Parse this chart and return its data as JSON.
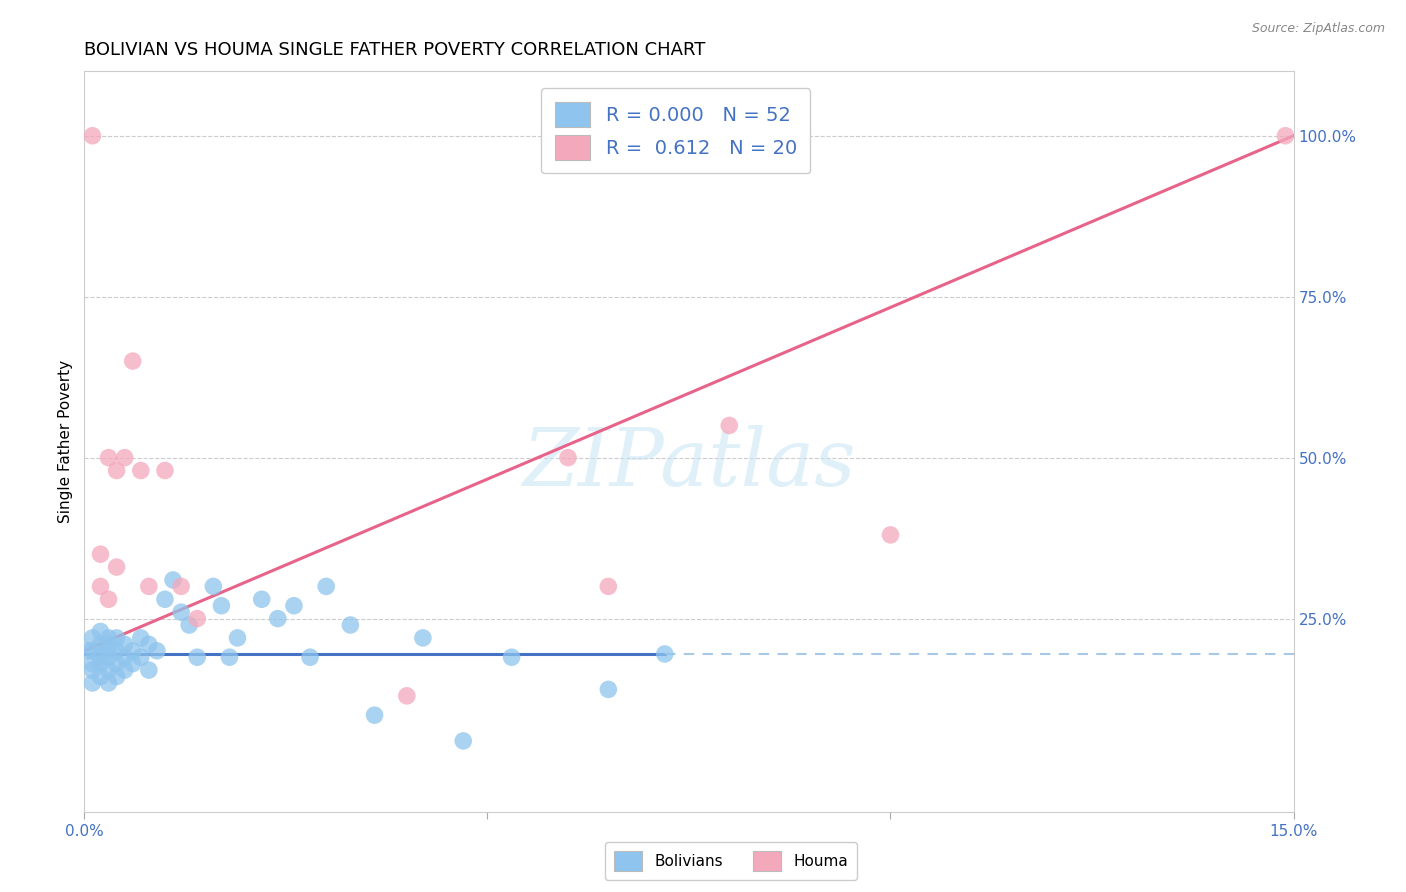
{
  "title": "BOLIVIAN VS HOUMA SINGLE FATHER POVERTY CORRELATION CHART",
  "source_text": "Source: ZipAtlas.com",
  "ylabel": "Single Father Poverty",
  "xlim": [
    0.0,
    0.15
  ],
  "ylim": [
    -0.05,
    1.1
  ],
  "ytick_labels_right": [
    "25.0%",
    "50.0%",
    "75.0%",
    "100.0%"
  ],
  "ytick_vals_right": [
    0.25,
    0.5,
    0.75,
    1.0
  ],
  "legend_r_bolivians": "0.000",
  "legend_n_bolivians": "52",
  "legend_r_houma": "0.612",
  "legend_n_houma": "20",
  "color_bolivians": "#8EC4ED",
  "color_houma": "#F4A8BB",
  "color_line_bolivians": "#4472C4",
  "color_line_houma": "#E8638A",
  "color_dashed": "#A8C8E8",
  "watermark": "ZIPatlas",
  "blue_line_y": 0.195,
  "houma_line_x0": 0.0,
  "houma_line_y0": 0.2,
  "houma_line_x1": 0.15,
  "houma_line_y1": 1.0,
  "solid_line_end_x": 0.072,
  "bolivians_x": [
    0.0005,
    0.001,
    0.001,
    0.001,
    0.001,
    0.001,
    0.002,
    0.002,
    0.002,
    0.002,
    0.002,
    0.003,
    0.003,
    0.003,
    0.003,
    0.003,
    0.003,
    0.004,
    0.004,
    0.004,
    0.004,
    0.005,
    0.005,
    0.005,
    0.006,
    0.006,
    0.007,
    0.007,
    0.008,
    0.008,
    0.009,
    0.01,
    0.011,
    0.012,
    0.013,
    0.014,
    0.016,
    0.017,
    0.018,
    0.019,
    0.022,
    0.024,
    0.026,
    0.028,
    0.03,
    0.033,
    0.036,
    0.042,
    0.047,
    0.053,
    0.065,
    0.072
  ],
  "bolivians_y": [
    0.2,
    0.18,
    0.2,
    0.17,
    0.22,
    0.15,
    0.19,
    0.21,
    0.16,
    0.23,
    0.18,
    0.2,
    0.17,
    0.22,
    0.19,
    0.15,
    0.21,
    0.2,
    0.18,
    0.16,
    0.22,
    0.19,
    0.21,
    0.17,
    0.2,
    0.18,
    0.22,
    0.19,
    0.21,
    0.17,
    0.2,
    0.28,
    0.31,
    0.26,
    0.24,
    0.19,
    0.3,
    0.27,
    0.19,
    0.22,
    0.28,
    0.25,
    0.27,
    0.19,
    0.3,
    0.24,
    0.1,
    0.22,
    0.06,
    0.19,
    0.14,
    0.195
  ],
  "houma_x": [
    0.001,
    0.002,
    0.002,
    0.003,
    0.003,
    0.004,
    0.004,
    0.005,
    0.006,
    0.007,
    0.008,
    0.01,
    0.012,
    0.014,
    0.04,
    0.06,
    0.065,
    0.08,
    0.1,
    0.149
  ],
  "houma_y": [
    1.0,
    0.3,
    0.35,
    0.5,
    0.28,
    0.48,
    0.33,
    0.5,
    0.65,
    0.48,
    0.3,
    0.48,
    0.3,
    0.25,
    0.13,
    0.5,
    0.3,
    0.55,
    0.38,
    1.0
  ]
}
